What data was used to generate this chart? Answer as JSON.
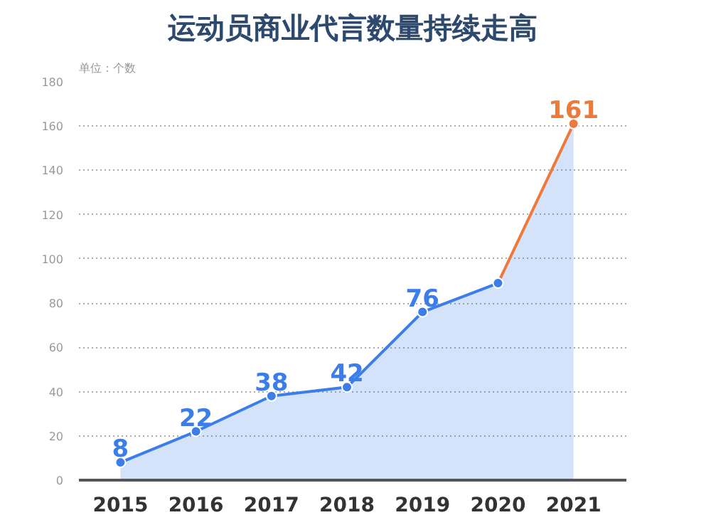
{
  "chart_data": {
    "type": "area",
    "title": "运动员商业代言数量持续走高",
    "ylabel": "单位：个数",
    "categories": [
      "2015",
      "2016",
      "2017",
      "2018",
      "2019",
      "2020",
      "2021"
    ],
    "series": [
      {
        "colors": [
          "#3b7de9",
          "#3b7de9",
          "#3b7de9",
          "#3b7de9",
          "#3b7de9",
          "#3b7de9",
          "#ec7a3c"
        ],
        "color": "#3b7de9",
        "values": [
          8,
          22,
          38,
          42,
          76,
          89,
          161
        ],
        "value_labels": [
          "8",
          "22",
          "38",
          "42",
          "76",
          null,
          "161"
        ]
      }
    ],
    "ylim": [
      0,
      180
    ],
    "yticks": [
      0,
      20,
      40,
      60,
      80,
      100,
      120,
      140,
      160,
      180
    ],
    "grid": "y",
    "marker": "circle",
    "line_style": "solid"
  }
}
